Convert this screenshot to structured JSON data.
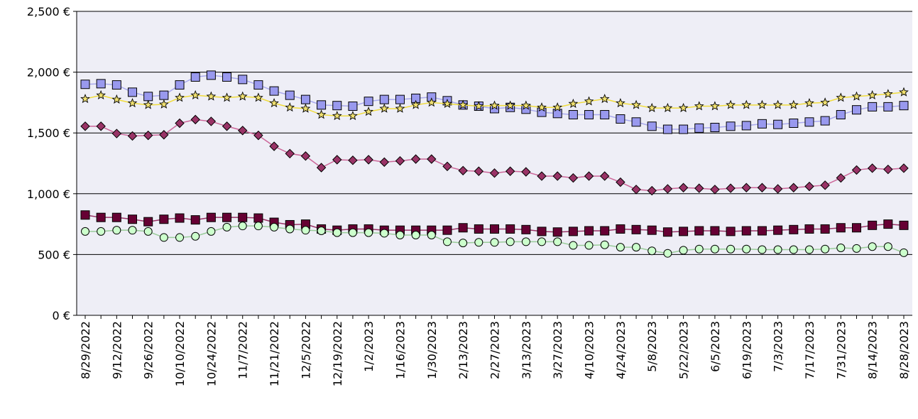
{
  "chart_data": {
    "type": "line",
    "title": "",
    "xlabel": "",
    "ylabel": "",
    "ylim": [
      0,
      2500
    ],
    "grid": "horizontal",
    "legend": "none",
    "y_ticks": [
      "0 €",
      "500 €",
      "1,000 €",
      "1,500 €",
      "2,000 €",
      "2,500 €"
    ],
    "y_tick_values": [
      0,
      500,
      1000,
      1500,
      2000,
      2500
    ],
    "x_tick_labels": [
      "8/29/2022",
      "9/12/2022",
      "9/26/2022",
      "10/10/2022",
      "10/24/2022",
      "11/7/2022",
      "11/21/2022",
      "12/5/2022",
      "12/19/2022",
      "1/2/2023",
      "1/16/2023",
      "1/30/2023",
      "2/13/2023",
      "2/27/2023",
      "3/13/2023",
      "3/27/2023",
      "4/10/2023",
      "4/24/2023",
      "5/8/2023",
      "5/22/2023",
      "6/5/2023",
      "6/19/2023",
      "7/3/2023",
      "7/17/2023",
      "7/31/2023",
      "8/14/2023",
      "8/28/2023"
    ],
    "x": [
      "8/29/2022",
      "9/5/2022",
      "9/12/2022",
      "9/19/2022",
      "9/26/2022",
      "10/3/2022",
      "10/10/2022",
      "10/17/2022",
      "10/24/2022",
      "10/31/2022",
      "11/7/2022",
      "11/14/2022",
      "11/21/2022",
      "11/28/2022",
      "12/5/2022",
      "12/12/2022",
      "12/19/2022",
      "12/26/2022",
      "1/2/2023",
      "1/9/2023",
      "1/16/2023",
      "1/23/2023",
      "1/30/2023",
      "2/6/2023",
      "2/13/2023",
      "2/20/2023",
      "2/27/2023",
      "3/6/2023",
      "3/13/2023",
      "3/20/2023",
      "3/27/2023",
      "4/3/2023",
      "4/10/2023",
      "4/17/2023",
      "4/24/2023",
      "5/1/2023",
      "5/8/2023",
      "5/15/2023",
      "5/22/2023",
      "5/29/2023",
      "6/5/2023",
      "6/12/2023",
      "6/19/2023",
      "6/26/2023",
      "7/3/2023",
      "7/10/2023",
      "7/17/2023",
      "7/24/2023",
      "7/31/2023",
      "8/7/2023",
      "8/14/2023",
      "8/21/2023",
      "8/28/2023"
    ],
    "colors": {
      "plot_bg": "#eeeef6",
      "grid": "#000000",
      "star_line": "#f0dc3c",
      "star_marker": "#f0e070",
      "square_blue": "#9999ee",
      "square_blue_line": "#aaaaee",
      "diamond": "#993366",
      "diamond_line": "#cc6699",
      "square_dark": "#660033",
      "circle_green": "#ccffcc"
    },
    "series": [
      {
        "marker": "square",
        "color": "#9999ee",
        "line_color": "#aaaaee",
        "values": [
          1900,
          1905,
          1895,
          1835,
          1800,
          1810,
          1895,
          1960,
          1975,
          1960,
          1940,
          1895,
          1845,
          1810,
          1775,
          1730,
          1725,
          1720,
          1760,
          1775,
          1775,
          1785,
          1795,
          1765,
          1730,
          1720,
          1700,
          1710,
          1695,
          1670,
          1660,
          1650,
          1650,
          1650,
          1615,
          1590,
          1555,
          1530,
          1530,
          1540,
          1545,
          1555,
          1560,
          1575,
          1570,
          1580,
          1590,
          1600,
          1650,
          1690,
          1715,
          1715,
          1725
        ]
      },
      {
        "marker": "star",
        "color": "#f0e070",
        "line_color": "#f0dc3c",
        "values": [
          1780,
          1810,
          1775,
          1745,
          1730,
          1735,
          1790,
          1810,
          1800,
          1790,
          1800,
          1790,
          1745,
          1710,
          1700,
          1650,
          1640,
          1640,
          1675,
          1700,
          1700,
          1730,
          1750,
          1740,
          1730,
          1720,
          1725,
          1725,
          1725,
          1710,
          1710,
          1740,
          1760,
          1780,
          1745,
          1730,
          1705,
          1705,
          1705,
          1720,
          1720,
          1730,
          1730,
          1730,
          1730,
          1730,
          1745,
          1750,
          1790,
          1800,
          1810,
          1820,
          1835
        ]
      },
      {
        "marker": "diamond",
        "color": "#993366",
        "line_color": "#cc6699",
        "values": [
          1555,
          1555,
          1495,
          1475,
          1480,
          1485,
          1580,
          1610,
          1595,
          1555,
          1520,
          1480,
          1390,
          1330,
          1310,
          1215,
          1280,
          1275,
          1280,
          1260,
          1270,
          1285,
          1285,
          1225,
          1190,
          1185,
          1170,
          1185,
          1180,
          1145,
          1145,
          1130,
          1145,
          1145,
          1095,
          1035,
          1025,
          1040,
          1050,
          1045,
          1035,
          1045,
          1050,
          1050,
          1040,
          1050,
          1060,
          1070,
          1130,
          1195,
          1210,
          1200,
          1210
        ]
      },
      {
        "marker": "square",
        "color": "#660033",
        "line_color": "#993366",
        "values": [
          825,
          805,
          805,
          790,
          770,
          790,
          800,
          785,
          805,
          805,
          805,
          800,
          765,
          745,
          750,
          710,
          700,
          710,
          710,
          700,
          700,
          700,
          700,
          700,
          720,
          710,
          710,
          710,
          705,
          690,
          685,
          690,
          695,
          695,
          710,
          705,
          700,
          685,
          690,
          695,
          695,
          690,
          695,
          695,
          700,
          705,
          710,
          710,
          720,
          720,
          740,
          750,
          740
        ]
      },
      {
        "marker": "circle",
        "color": "#ccffcc",
        "line_color": "#99cc99",
        "values": [
          690,
          690,
          700,
          700,
          690,
          640,
          640,
          650,
          690,
          725,
          735,
          735,
          725,
          710,
          700,
          695,
          680,
          680,
          680,
          675,
          660,
          660,
          660,
          605,
          595,
          600,
          600,
          605,
          605,
          605,
          605,
          575,
          575,
          580,
          560,
          560,
          530,
          510,
          535,
          545,
          545,
          545,
          545,
          540,
          540,
          540,
          540,
          545,
          555,
          550,
          565,
          565,
          515
        ]
      }
    ]
  }
}
